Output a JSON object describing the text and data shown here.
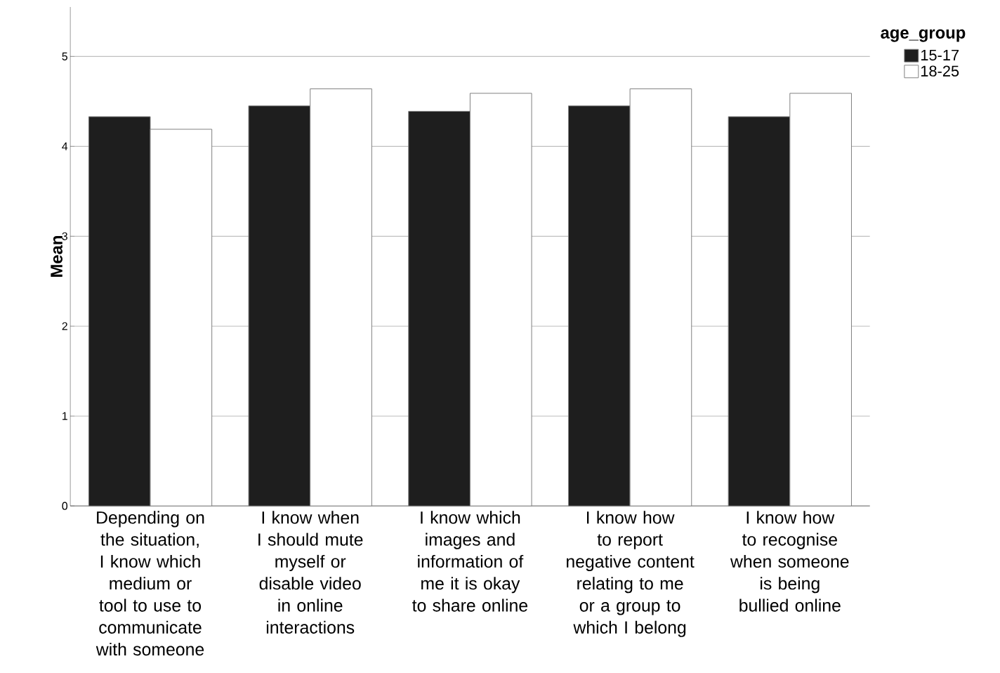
{
  "chart_data": {
    "type": "bar",
    "ylabel": "Mean",
    "legend_title": "age_group",
    "categories": [
      "Depending on the situation, I know which medium or tool to use to communicate with someone",
      "I know when I should mute myself or disable video in online interactions",
      "I know which images and information of me it is okay to share online",
      "I know how to report negative content relating to me or a group to which I belong",
      "I know how to recognise when someone is being bullied online"
    ],
    "series": [
      {
        "name": "15-17",
        "color": "#1e1e1e",
        "values": [
          4.33,
          4.45,
          4.39,
          4.45,
          4.33
        ]
      },
      {
        "name": "18-25",
        "color": "#ffffff",
        "values": [
          4.19,
          4.64,
          4.59,
          4.64,
          4.59
        ]
      }
    ],
    "ylim": [
      0,
      5.55
    ],
    "yticks": [
      0,
      1,
      2,
      3,
      4,
      5
    ],
    "grid": "y",
    "legend": "top right"
  }
}
